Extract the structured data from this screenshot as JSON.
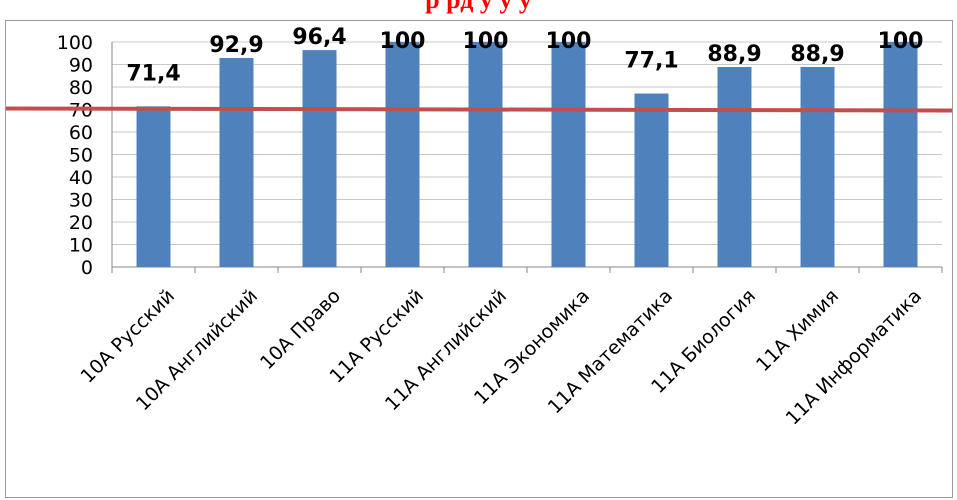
{
  "title": "р                         рд                у    у                     у",
  "colors": {
    "bar": "#4f81bd",
    "threshold": "#c0504d",
    "title": "#ff0000",
    "grid": "#c8c8c8"
  },
  "chart_data": {
    "type": "bar",
    "categories": [
      "10А Русский",
      "10А Английский",
      "10А Право",
      "11А Русский",
      "11А Английский",
      "11А Экономика",
      "11А Математика",
      "11А Биология",
      "11А Химия",
      "11А Информатика"
    ],
    "values": [
      71.4,
      92.9,
      96.4,
      100,
      100,
      100,
      77.1,
      88.9,
      88.9,
      100
    ],
    "data_labels": [
      "71,4",
      "92,9",
      "96,4",
      "100",
      "100",
      "100",
      "77,1",
      "88,9",
      "88,9",
      "100"
    ],
    "y_ticks": [
      "0",
      "10",
      "20",
      "30",
      "40",
      "50",
      "60",
      "70",
      "80",
      "90",
      "100"
    ],
    "ylim": [
      0,
      100
    ],
    "threshold": 70,
    "grid": true,
    "legend": "none"
  }
}
